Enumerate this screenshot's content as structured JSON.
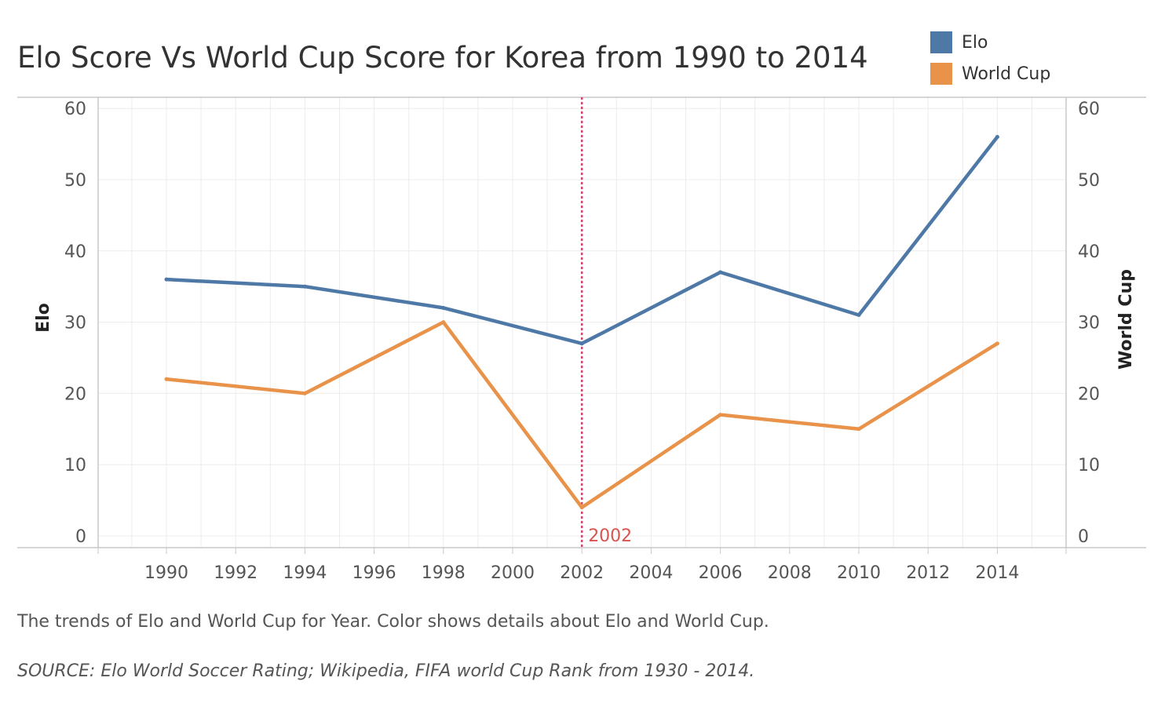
{
  "title": "Elo Score Vs World Cup Score for Korea from 1990 to 2014",
  "caption": "The trends of Elo and World Cup for Year.  Color shows details about Elo and World Cup.",
  "source": "SOURCE: Elo World Soccer Rating; Wikipedia, FIFA world Cup Rank from 1930 - 2014.",
  "legend": [
    {
      "label": "Elo",
      "color": "#4e79a7"
    },
    {
      "label": "World Cup",
      "color": "#e8924a"
    }
  ],
  "chart_data": {
    "type": "line",
    "x": [
      1990,
      1994,
      1998,
      2002,
      2006,
      2010,
      2014
    ],
    "x_ticks": [
      "1990",
      "1992",
      "1994",
      "1996",
      "1998",
      "2000",
      "2002",
      "2004",
      "2006",
      "2008",
      "2010",
      "2012",
      "2014"
    ],
    "xlim": [
      1988,
      2016
    ],
    "y_ticks": [
      "0",
      "10",
      "20",
      "30",
      "40",
      "50",
      "60"
    ],
    "ylim": [
      0,
      60
    ],
    "ylabel_left": "Elo",
    "ylabel_right": "World Cup",
    "grid": true,
    "legend_position": "top-right",
    "series": [
      {
        "name": "Elo",
        "color": "#4e79a7",
        "values": [
          36,
          35,
          32,
          27,
          37,
          31,
          56
        ]
      },
      {
        "name": "World Cup",
        "color": "#e8924a",
        "values": [
          22,
          20,
          30,
          4,
          17,
          15,
          27
        ]
      }
    ],
    "reference_line": {
      "x": 2002,
      "label": "2002",
      "color": "#d6426a"
    }
  }
}
